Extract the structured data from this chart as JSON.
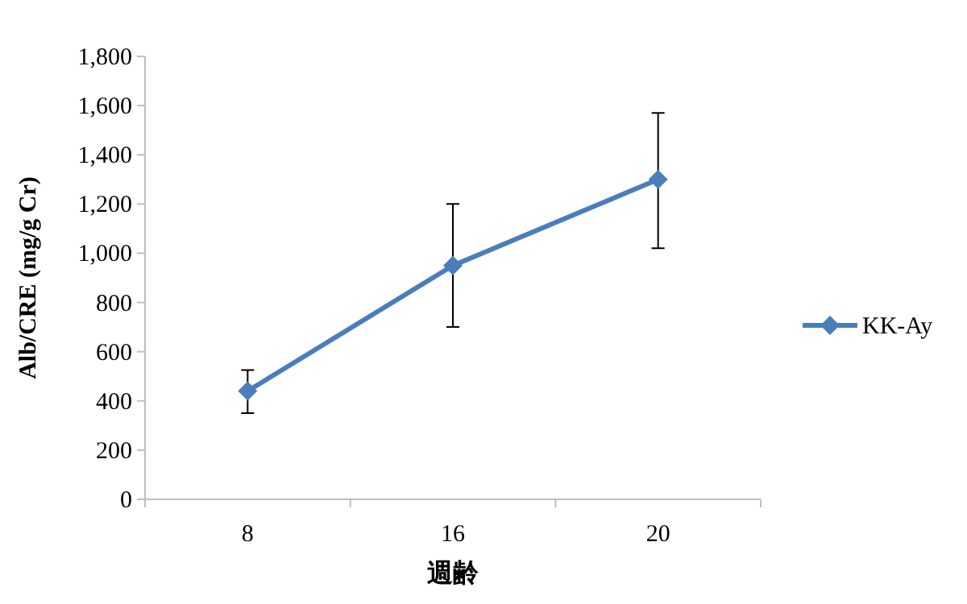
{
  "chart_data": {
    "type": "line",
    "xlabel": "週齢",
    "ylabel": "Alb/CRE (mg/g Cr)",
    "categories": [
      "8",
      "16",
      "20"
    ],
    "series": [
      {
        "name": "KK-Ay",
        "color": "#4a7ebb",
        "values": [
          440,
          950,
          1300
        ],
        "errors": [
          [
            350,
            525
          ],
          [
            700,
            1200
          ],
          [
            1020,
            1570
          ]
        ]
      }
    ],
    "ylim": [
      0,
      1800
    ],
    "yticks": [
      {
        "value": 0,
        "label": "0"
      },
      {
        "value": 200,
        "label": "200"
      },
      {
        "value": 400,
        "label": "400"
      },
      {
        "value": 600,
        "label": "600"
      },
      {
        "value": 800,
        "label": "800"
      },
      {
        "value": 1000,
        "label": "1,000"
      },
      {
        "value": 1200,
        "label": "1,200"
      },
      {
        "value": 1400,
        "label": "1,400"
      },
      {
        "value": 1600,
        "label": "1,600"
      },
      {
        "value": 1800,
        "label": "1,800"
      }
    ],
    "grid": false,
    "legend": "right",
    "marker": "diamond",
    "line_style": "solid"
  }
}
